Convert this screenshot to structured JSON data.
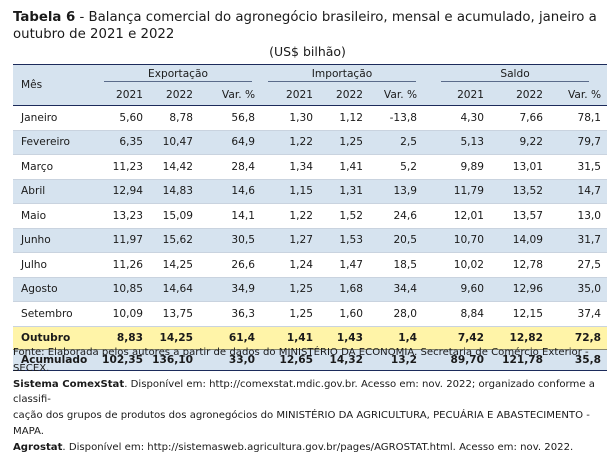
{
  "title": {
    "label": "Tabela 6",
    "text": " - Balança comercial do agronegócio brasileiro, mensal e acumulado, janeiro a outubro de 2021 e 2022"
  },
  "unit": "(US$ bilhão)",
  "header": {
    "mes": "Mês",
    "groups": [
      "Exportação",
      "Importação",
      "Saldo"
    ],
    "subcols": [
      "2021",
      "2022",
      "Var. %"
    ]
  },
  "rows": [
    {
      "mes": "Janeiro",
      "v": [
        "5,60",
        "8,78",
        "56,8",
        "1,30",
        "1,12",
        "-13,8",
        "4,30",
        "7,66",
        "78,1"
      ]
    },
    {
      "mes": "Fevereiro",
      "v": [
        "6,35",
        "10,47",
        "64,9",
        "1,22",
        "1,25",
        "2,5",
        "5,13",
        "9,22",
        "79,7"
      ]
    },
    {
      "mes": "Março",
      "v": [
        "11,23",
        "14,42",
        "28,4",
        "1,34",
        "1,41",
        "5,2",
        "9,89",
        "13,01",
        "31,5"
      ]
    },
    {
      "mes": "Abril",
      "v": [
        "12,94",
        "14,83",
        "14,6",
        "1,15",
        "1,31",
        "13,9",
        "11,79",
        "13,52",
        "14,7"
      ]
    },
    {
      "mes": "Maio",
      "v": [
        "13,23",
        "15,09",
        "14,1",
        "1,22",
        "1,52",
        "24,6",
        "12,01",
        "13,57",
        "13,0"
      ]
    },
    {
      "mes": "Junho",
      "v": [
        "11,97",
        "15,62",
        "30,5",
        "1,27",
        "1,53",
        "20,5",
        "10,70",
        "14,09",
        "31,7"
      ]
    },
    {
      "mes": "Julho",
      "v": [
        "11,26",
        "14,25",
        "26,6",
        "1,24",
        "1,47",
        "18,5",
        "10,02",
        "12,78",
        "27,5"
      ]
    },
    {
      "mes": "Agosto",
      "v": [
        "10,85",
        "14,64",
        "34,9",
        "1,25",
        "1,68",
        "34,4",
        "9,60",
        "12,96",
        "35,0"
      ]
    },
    {
      "mes": "Setembro",
      "v": [
        "10,09",
        "13,75",
        "36,3",
        "1,25",
        "1,60",
        "28,0",
        "8,84",
        "12,15",
        "37,4"
      ]
    }
  ],
  "outubro": {
    "mes": "Outubro",
    "v": [
      "8,83",
      "14,25",
      "61,4",
      "1,41",
      "1,43",
      "1,4",
      "7,42",
      "12,82",
      "72,8"
    ]
  },
  "acumulado": {
    "mes": "Acumulado",
    "v": [
      "102,35",
      "136,10",
      "33,0",
      "12,65",
      "14,32",
      "13,2",
      "89,70",
      "121,78",
      "35,8"
    ]
  },
  "footer": {
    "p1": "Fonte: Elaborada pelos autores a partir de dados do MINISTÉRIO DA ECONOMIA. Secretaria de Comércio Exterior -SECEX.",
    "p2b": "Sistema ComexStat",
    "p2": ". Disponível em: http://comexstat.mdic.gov.br. Acesso em: nov. 2022; organizado conforme a classifi-",
    "p3": "cação dos grupos de produtos dos agronegócios do MINISTÉRIO DA AGRICULTURA, PECUÁRIA E ABASTECIMENTO - MAPA.",
    "p4b": "Agrostat",
    "p4": ". Disponível em: http://sistemasweb.agricultura.gov.br/pages/AGROSTAT.html. Acesso em: nov. 2022."
  }
}
